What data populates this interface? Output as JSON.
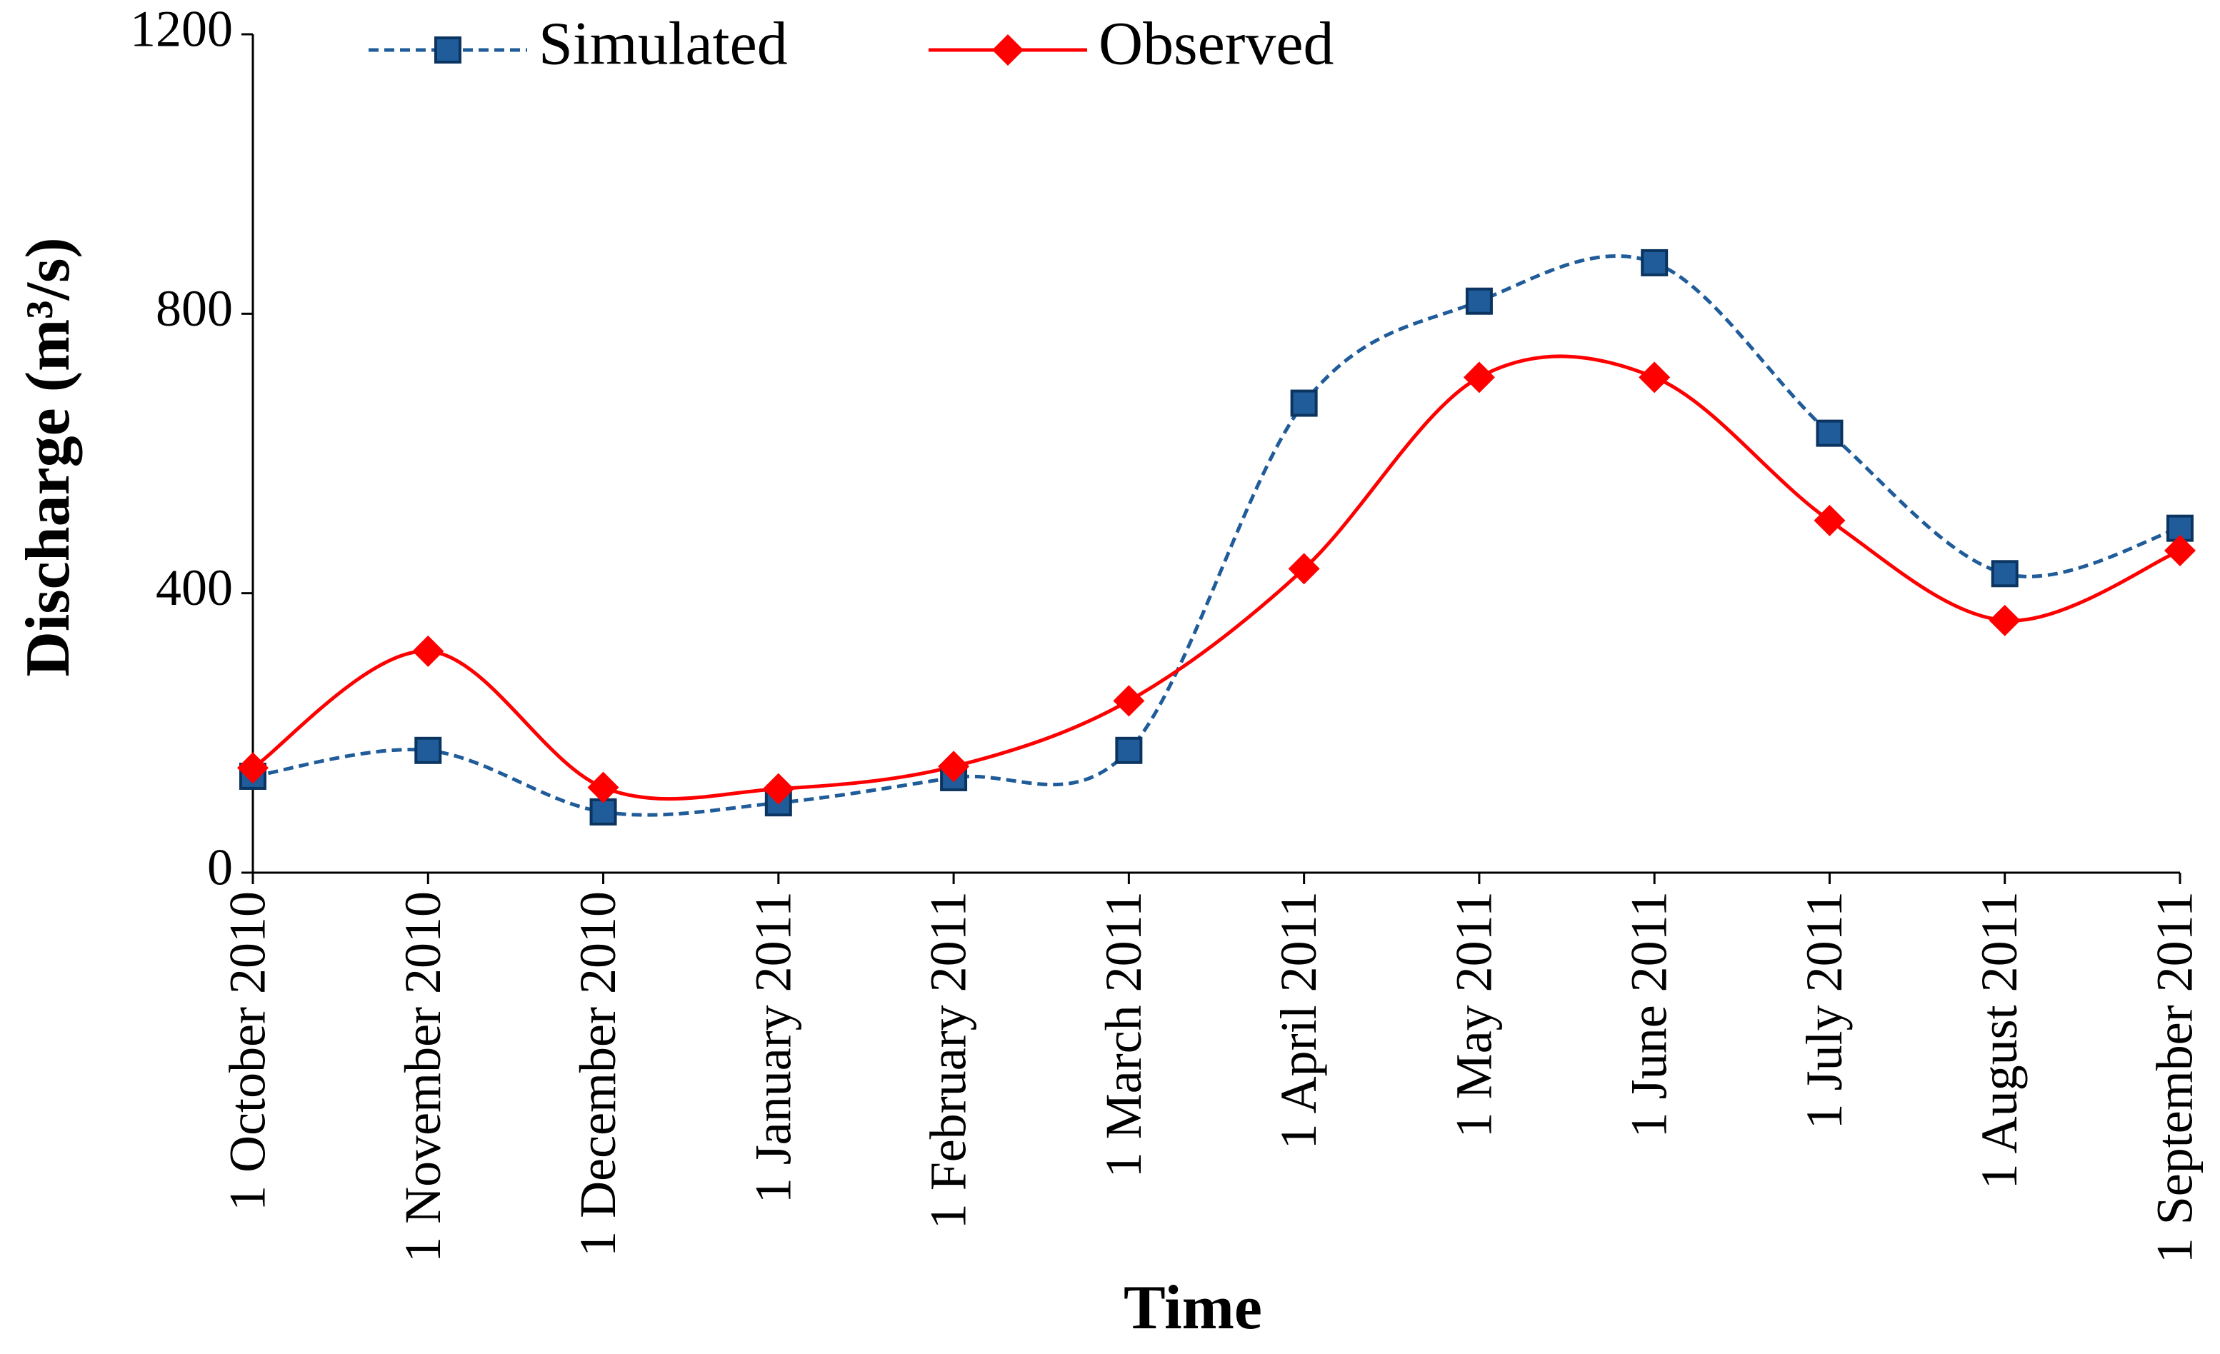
{
  "chart_data": {
    "type": "line",
    "x_label": "Time",
    "y_label": "Discharge (m³/s)",
    "categories": [
      "1 October 2010",
      "1 November 2010",
      "1 December 2010",
      "1 January 2011",
      "1 February 2011",
      "1 March 2011",
      "1 April 2011",
      "1 May 2011",
      "1 June 2011",
      "1 July 2011",
      "1 August 2011",
      "1 September 2011"
    ],
    "series": [
      {
        "name": "Simulated",
        "color": "#1f5c99",
        "marker": "square",
        "dashed": true,
        "values": [
          138,
          175,
          87,
          100,
          136,
          175,
          672,
          818,
          873,
          629,
          428,
          493
        ]
      },
      {
        "name": "Observed",
        "color": "#ff0000",
        "marker": "diamond",
        "dashed": false,
        "values": [
          150,
          317,
          122,
          120,
          152,
          246,
          435,
          709,
          709,
          504,
          361,
          461
        ]
      }
    ],
    "ylim": [
      0,
      1200
    ],
    "yticks": [
      0,
      400,
      800,
      1200
    ],
    "grid": false,
    "smooth": true,
    "legend": "top"
  }
}
